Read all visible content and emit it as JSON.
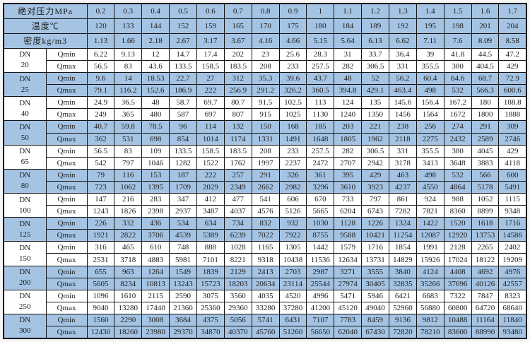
{
  "colors": {
    "band_blue": "#a5c4e4",
    "grid_line": "#141414",
    "outer_border": "#000000",
    "text": "#1c1c1c"
  },
  "table": {
    "dn_label": "DN",
    "qmin_label": "Qmin",
    "qmax_label": "Qmax",
    "header_rows": [
      {
        "label": "绝对压力MPa",
        "values": [
          "0.2",
          "0.3",
          "0.4",
          "0.5",
          "0.6",
          "0.7",
          "0.8",
          "0.9",
          "1",
          "1.1",
          "1.2",
          "1.3",
          "1.4",
          "1.5",
          "1.6",
          "1.7"
        ]
      },
      {
        "label": "温度℃",
        "values": [
          "120",
          "133",
          "144",
          "152",
          "159",
          "165",
          "170",
          "175",
          "180",
          "184",
          "189",
          "192",
          "195",
          "198",
          "201",
          "204"
        ]
      },
      {
        "label": "密度kg/m3",
        "values": [
          "1.13",
          "1.66",
          "2.18",
          "2.67",
          "3.17",
          "3.67",
          "4.16",
          "4.66",
          "5.15",
          "5.64",
          "6.13",
          "6.62",
          "7.11",
          "7.6",
          "8.09",
          "8.58"
        ]
      }
    ],
    "groups": [
      {
        "size": "20",
        "shaded": false,
        "qmin": [
          "6.22",
          "9.13",
          "12",
          "14.7",
          "17.4",
          "202",
          "23",
          "25.6",
          "28.3",
          "31",
          "33.7",
          "36.4",
          "39",
          "41.8",
          "44.5",
          "47.2"
        ],
        "qmax": [
          "56.5",
          "83",
          "43.6",
          "133.5",
          "158.5",
          "183.5",
          "208",
          "233",
          "257.5",
          "282",
          "306.5",
          "331",
          "355.5",
          "380",
          "404.5",
          "429"
        ]
      },
      {
        "size": "25",
        "shaded": true,
        "qmin": [
          "9.6",
          "14",
          "18.53",
          "22.7",
          "27",
          "312",
          "35.3",
          "39.6",
          "43.7",
          "48",
          "52",
          "56.2",
          "60.4",
          "64.6",
          "68.7",
          "72.9"
        ],
        "qmax": [
          "79.1",
          "116.2",
          "152.6",
          "186.9",
          "222",
          "256.9",
          "291.2",
          "326.2",
          "360.5",
          "394.8",
          "429.1",
          "463.4",
          "498",
          "532",
          "566.3",
          "600.6"
        ]
      },
      {
        "size": "40",
        "shaded": false,
        "qmin": [
          "24.9",
          "36.5",
          "48",
          "58.7",
          "69.7",
          "80.7",
          "91.5",
          "102.5",
          "113",
          "124",
          "135",
          "145.6",
          "156.4",
          "167.2",
          "180",
          "188.8"
        ],
        "qmax": [
          "249",
          "365",
          "480",
          "587",
          "697",
          "807",
          "915",
          "1025",
          "1130",
          "1240",
          "1350",
          "1456",
          "1564",
          "1672",
          "1800",
          "1888"
        ]
      },
      {
        "size": "50",
        "shaded": true,
        "qmin": [
          "40.7",
          "59.8",
          "78.5",
          "96",
          "114",
          "132",
          "150",
          "168",
          "185",
          "203",
          "221",
          "238",
          "256",
          "274",
          "291",
          "309"
        ],
        "qmax": [
          "362",
          "531",
          "698",
          "854",
          "1014",
          "1174",
          "1331",
          "1491",
          "1648",
          "1805",
          "1962",
          "2118",
          "2275",
          "2432",
          "2589",
          "2746"
        ]
      },
      {
        "size": "65",
        "shaded": false,
        "qmin": [
          "56.5",
          "83",
          "109",
          "133.5",
          "158.5",
          "183.5",
          "208",
          "233",
          "257.5",
          "282",
          "306.5",
          "331",
          "355.5",
          "380",
          "4045",
          "429"
        ],
        "qmax": [
          "542",
          "797",
          "1046",
          "1282",
          "1522",
          "1762",
          "1997",
          "2237",
          "2472",
          "2707",
          "2942",
          "3178",
          "3413",
          "3648",
          "3883",
          "4118"
        ]
      },
      {
        "size": "80",
        "shaded": true,
        "qmin": [
          "79",
          "116",
          "153",
          "187",
          "222",
          "257",
          "291",
          "326",
          "361",
          "395",
          "429",
          "463",
          "498",
          "532",
          "566",
          "600"
        ],
        "qmax": [
          "723",
          "1062",
          "1395",
          "1709",
          "2029",
          "2349",
          "2662",
          "2982",
          "3296",
          "3610",
          "3923",
          "4237",
          "4550",
          "4864",
          "5178",
          "5491"
        ]
      },
      {
        "size": "100",
        "shaded": false,
        "qmin": [
          "147",
          "216",
          "283",
          "347",
          "412",
          "477",
          "541",
          "606",
          "670",
          "733",
          "797",
          "861",
          "924",
          "988",
          "1052",
          "1115"
        ],
        "qmax": [
          "1243",
          "1826",
          "2398",
          "2937",
          "3487",
          "4037",
          "4576",
          "5126",
          "5665",
          "6204",
          "6743",
          "7282",
          "7821",
          "8360",
          "8899",
          "9348"
        ]
      },
      {
        "size": "125",
        "shaded": true,
        "qmin": [
          "226",
          "332",
          "436",
          "534",
          "634",
          "734",
          "832",
          "932",
          "1030",
          "1128",
          "1226",
          "1324",
          "1422",
          "1520",
          "1618",
          "1716"
        ],
        "qmax": [
          "1921",
          "2822",
          "3706",
          "4539",
          "5389",
          "6239",
          "7022",
          "7922",
          "8755",
          "9588",
          "10421",
          "11254",
          "12087",
          "12920",
          "13753",
          "14586"
        ]
      },
      {
        "size": "150",
        "shaded": false,
        "qmin": [
          "316",
          "465",
          "610",
          "748",
          "888",
          "1028",
          "1165",
          "1305",
          "1442",
          "1579",
          "1716",
          "1854",
          "1991",
          "2128",
          "2265",
          "2402"
        ],
        "qmax": [
          "2531",
          "3718",
          "4883",
          "5981",
          "7101",
          "8221",
          "9318",
          "10438",
          "11536",
          "12634",
          "13731",
          "14829",
          "15926",
          "17024",
          "18122",
          "19209"
        ]
      },
      {
        "size": "200",
        "shaded": true,
        "qmin": [
          "655",
          "963",
          "1264",
          "1549",
          "1839",
          "2129",
          "2413",
          "2703",
          "2987",
          "3271",
          "3555",
          "3840",
          "4124",
          "4408",
          "4692",
          "4976"
        ],
        "qmax": [
          "5605",
          "8234",
          "10813",
          "13243",
          "15723",
          "18203",
          "20634",
          "23114",
          "25544",
          "27974",
          "30405",
          "32835",
          "35266",
          "37696",
          "40126",
          "42557"
        ]
      },
      {
        "size": "250",
        "shaded": false,
        "qmin": [
          "1096",
          "1610",
          "2115",
          "2590",
          "3075",
          "3560",
          "4035",
          "4520",
          "4996",
          "5471",
          "5946",
          "6421",
          "6683",
          "7322",
          "7847",
          "8323"
        ],
        "qmax": [
          "9040",
          "13280",
          "17440",
          "21360",
          "25360",
          "29360",
          "33280",
          "37280",
          "41200",
          "45120",
          "49040",
          "52960",
          "56880",
          "60800",
          "64720",
          "68640"
        ]
      },
      {
        "size": "300",
        "shaded": true,
        "qmin": [
          "1560",
          "2290",
          "3008",
          "3684",
          "4375",
          "5056",
          "5741",
          "6431",
          "7107",
          "7783",
          "8459",
          "9136",
          "9812",
          "10488",
          "11164",
          "11840"
        ],
        "qmax": [
          "12430",
          "18260",
          "23980",
          "29370",
          "34870",
          "40370",
          "45760",
          "51260",
          "56650",
          "62040",
          "67430",
          "72820",
          "78210",
          "83600",
          "88990",
          "93480"
        ]
      }
    ]
  }
}
